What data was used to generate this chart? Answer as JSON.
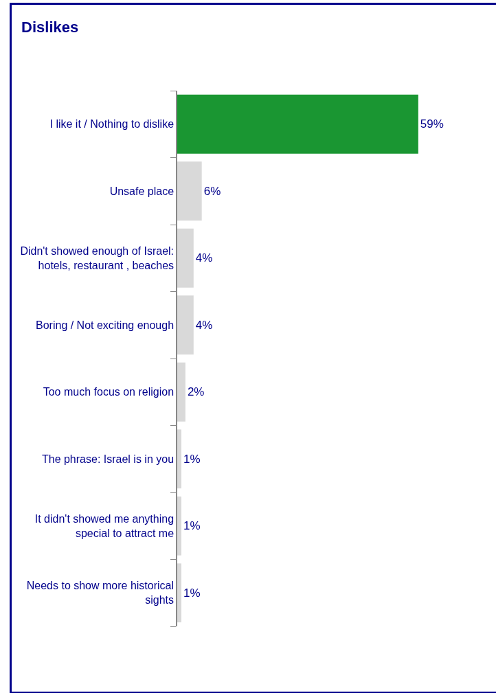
{
  "chart_data": {
    "type": "bar",
    "title": "Dislikes",
    "orientation": "horizontal",
    "categories": [
      "I like it / Nothing to dislike",
      "Unsafe place",
      "Didn't showed enough of Israel: hotels, restaurant , beaches",
      "Boring / Not exciting enough",
      "Too much focus on religion",
      "The phrase: Israel is in you",
      "It didn't showed me anything special to attract me",
      "Needs to show more historical sights"
    ],
    "values": [
      59,
      6,
      4,
      4,
      2,
      1,
      1,
      1
    ],
    "colors": [
      "#1a9632",
      "#d9d9d9",
      "#d9d9d9",
      "#d9d9d9",
      "#d9d9d9",
      "#d9d9d9",
      "#d9d9d9",
      "#d9d9d9"
    ],
    "value_labels": [
      "59%",
      "6%",
      "4%",
      "4%",
      "2%",
      "1%",
      "1%",
      "1%"
    ],
    "grid": false
  }
}
